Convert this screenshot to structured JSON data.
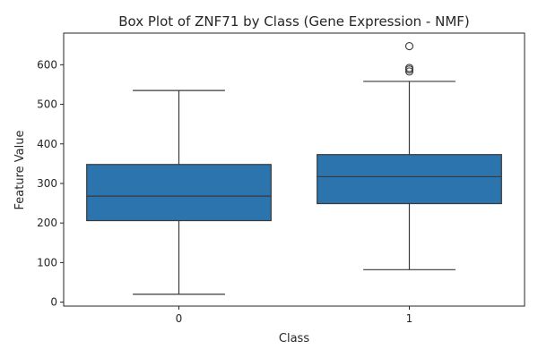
{
  "chart_data": {
    "type": "box",
    "title": "Box Plot of ZNF71 by Class (Gene Expression - NMF)",
    "xlabel": "Class",
    "ylabel": "Feature Value",
    "categories": [
      "0",
      "1"
    ],
    "ylim": [
      -10,
      680
    ],
    "yticks": [
      0,
      100,
      200,
      300,
      400,
      500,
      600
    ],
    "grid": false,
    "legend": "none",
    "box_color": "#2b74ae",
    "line_color": "#3a3a3a",
    "boxes": [
      {
        "category": "0",
        "whisker_low": 20,
        "q1": 206,
        "median": 268,
        "q3": 348,
        "whisker_high": 535,
        "outliers": []
      },
      {
        "category": "1",
        "whisker_low": 82,
        "q1": 249,
        "median": 317,
        "q3": 373,
        "whisker_high": 558,
        "outliers": [
          583,
          588,
          592,
          647
        ]
      }
    ]
  }
}
